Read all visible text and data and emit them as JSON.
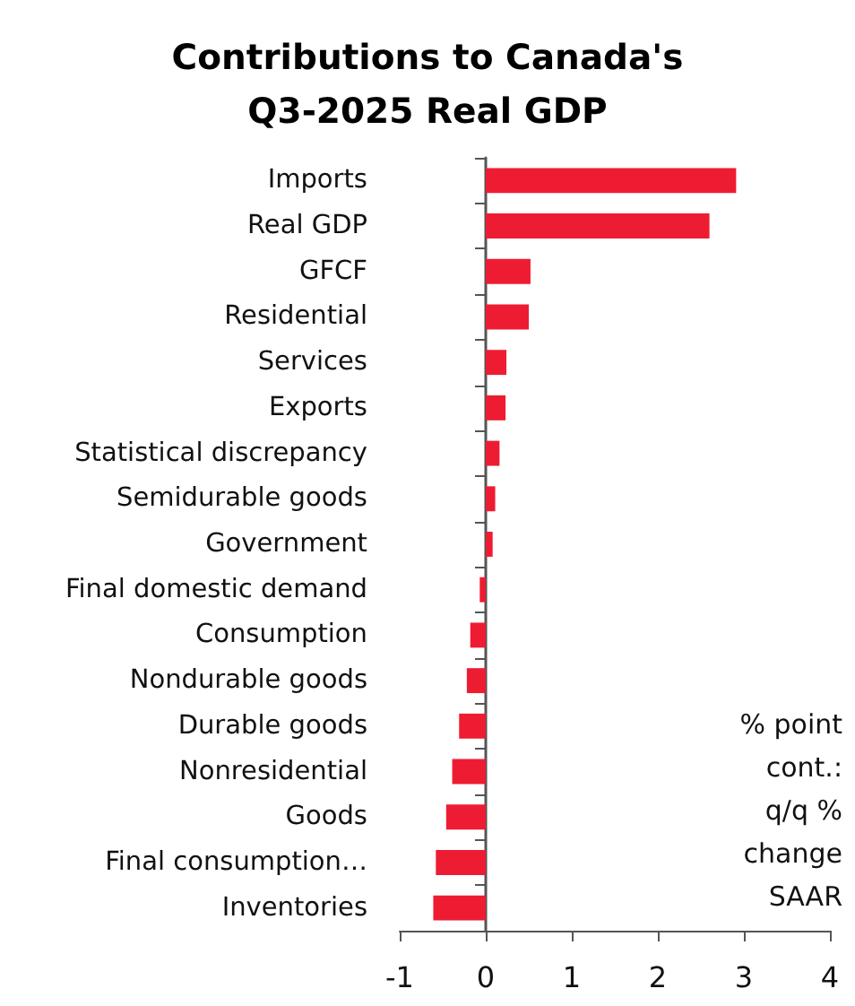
{
  "chart_data": {
    "type": "bar",
    "orientation": "horizontal",
    "title": "Contributions to Canada's\nQ3-2025 Real GDP",
    "categories": [
      "Imports",
      "Real GDP",
      "GFCF",
      "Residential",
      "Services",
      "Exports",
      "Statistical discrepancy",
      "Semidurable goods",
      "Government",
      "Final domestic demand",
      "Consumption",
      "Nondurable goods",
      "Durable goods",
      "Nonresidential",
      "Goods",
      "Final consumption…",
      "Inventories"
    ],
    "values": [
      2.91,
      2.6,
      0.52,
      0.5,
      0.24,
      0.23,
      0.16,
      0.11,
      0.08,
      -0.07,
      -0.18,
      -0.22,
      -0.31,
      -0.39,
      -0.46,
      -0.58,
      -0.61
    ],
    "color": "#ee1c33",
    "xlim": [
      -1,
      4
    ],
    "xticks": [
      -1,
      0,
      1,
      2,
      3,
      4
    ],
    "annotations": [
      "% point\ncont.:\nq/q %\nchange\nSAAR"
    ]
  }
}
